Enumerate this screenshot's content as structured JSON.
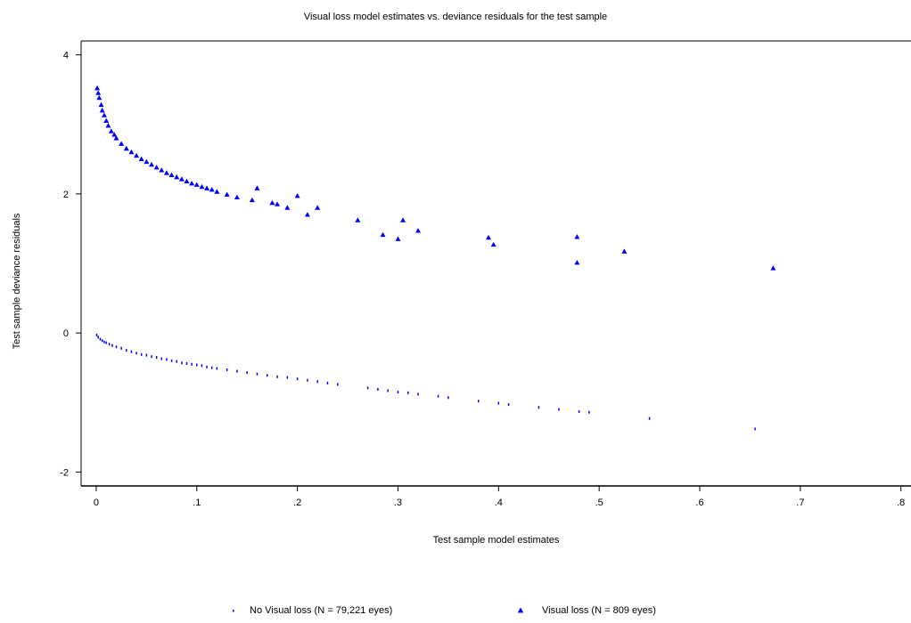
{
  "chart_data": {
    "type": "scatter",
    "title": "Visual loss model estimates vs. deviance residuals for the test sample",
    "xlabel": "Test sample model estimates",
    "ylabel": "Test sample deviance residuals",
    "xlim": [
      -0.015,
      0.81
    ],
    "ylim": [
      -2.2,
      4.2
    ],
    "x_ticks": [
      0,
      0.1,
      0.2,
      0.3,
      0.4,
      0.5,
      0.6,
      0.7,
      0.8
    ],
    "x_tick_labels": [
      "0",
      ".1",
      ".2",
      ".3",
      ".4",
      ".5",
      ".6",
      ".7",
      ".8"
    ],
    "y_ticks": [
      -2,
      0,
      2,
      4
    ],
    "y_tick_labels": [
      "-2",
      "0",
      "2",
      "4"
    ],
    "grid": false,
    "legend_position": "bottom",
    "colors": {
      "points": "#0000ff",
      "axes": "#000000"
    },
    "series": [
      {
        "name": "No Visual loss (N = 79,221 eyes)",
        "marker": "dot",
        "x": [
          0.0005,
          0.002,
          0.004,
          0.006,
          0.008,
          0.01,
          0.013,
          0.016,
          0.02,
          0.025,
          0.03,
          0.035,
          0.04,
          0.045,
          0.05,
          0.055,
          0.06,
          0.065,
          0.07,
          0.075,
          0.08,
          0.085,
          0.09,
          0.095,
          0.1,
          0.105,
          0.11,
          0.115,
          0.12,
          0.13,
          0.14,
          0.15,
          0.16,
          0.17,
          0.18,
          0.19,
          0.2,
          0.21,
          0.22,
          0.23,
          0.24,
          0.27,
          0.28,
          0.29,
          0.3,
          0.31,
          0.32,
          0.34,
          0.35,
          0.38,
          0.4,
          0.41,
          0.44,
          0.46,
          0.48,
          0.49,
          0.55,
          0.655
        ],
        "y": [
          -0.03,
          -0.06,
          -0.09,
          -0.11,
          -0.13,
          -0.14,
          -0.16,
          -0.18,
          -0.2,
          -0.22,
          -0.25,
          -0.27,
          -0.29,
          -0.31,
          -0.32,
          -0.34,
          -0.35,
          -0.37,
          -0.38,
          -0.4,
          -0.41,
          -0.43,
          -0.44,
          -0.45,
          -0.46,
          -0.47,
          -0.49,
          -0.5,
          -0.51,
          -0.53,
          -0.55,
          -0.57,
          -0.59,
          -0.61,
          -0.63,
          -0.64,
          -0.66,
          -0.68,
          -0.7,
          -0.72,
          -0.74,
          -0.79,
          -0.81,
          -0.83,
          -0.85,
          -0.86,
          -0.88,
          -0.91,
          -0.93,
          -0.98,
          -1.01,
          -1.03,
          -1.07,
          -1.1,
          -1.13,
          -1.14,
          -1.23,
          -1.38
        ]
      },
      {
        "name": "Visual loss (N = 809 eyes)",
        "marker": "triangle",
        "x": [
          0.001,
          0.002,
          0.003,
          0.005,
          0.006,
          0.008,
          0.01,
          0.012,
          0.015,
          0.018,
          0.02,
          0.025,
          0.03,
          0.035,
          0.04,
          0.045,
          0.05,
          0.055,
          0.06,
          0.065,
          0.07,
          0.075,
          0.08,
          0.085,
          0.09,
          0.095,
          0.1,
          0.105,
          0.11,
          0.115,
          0.12,
          0.13,
          0.14,
          0.155,
          0.16,
          0.175,
          0.18,
          0.19,
          0.2,
          0.21,
          0.22,
          0.26,
          0.285,
          0.3,
          0.305,
          0.32,
          0.39,
          0.395,
          0.478,
          0.478,
          0.525,
          0.673
        ],
        "y": [
          3.52,
          3.45,
          3.38,
          3.28,
          3.2,
          3.13,
          3.05,
          2.98,
          2.9,
          2.85,
          2.8,
          2.72,
          2.65,
          2.6,
          2.55,
          2.5,
          2.46,
          2.42,
          2.38,
          2.34,
          2.3,
          2.27,
          2.24,
          2.21,
          2.18,
          2.15,
          2.13,
          2.1,
          2.08,
          2.06,
          2.03,
          1.99,
          1.95,
          1.91,
          2.08,
          1.87,
          1.85,
          1.8,
          1.97,
          1.7,
          1.8,
          1.62,
          1.41,
          1.35,
          1.62,
          1.47,
          1.37,
          1.27,
          1.38,
          1.01,
          1.17,
          0.93
        ]
      }
    ]
  }
}
